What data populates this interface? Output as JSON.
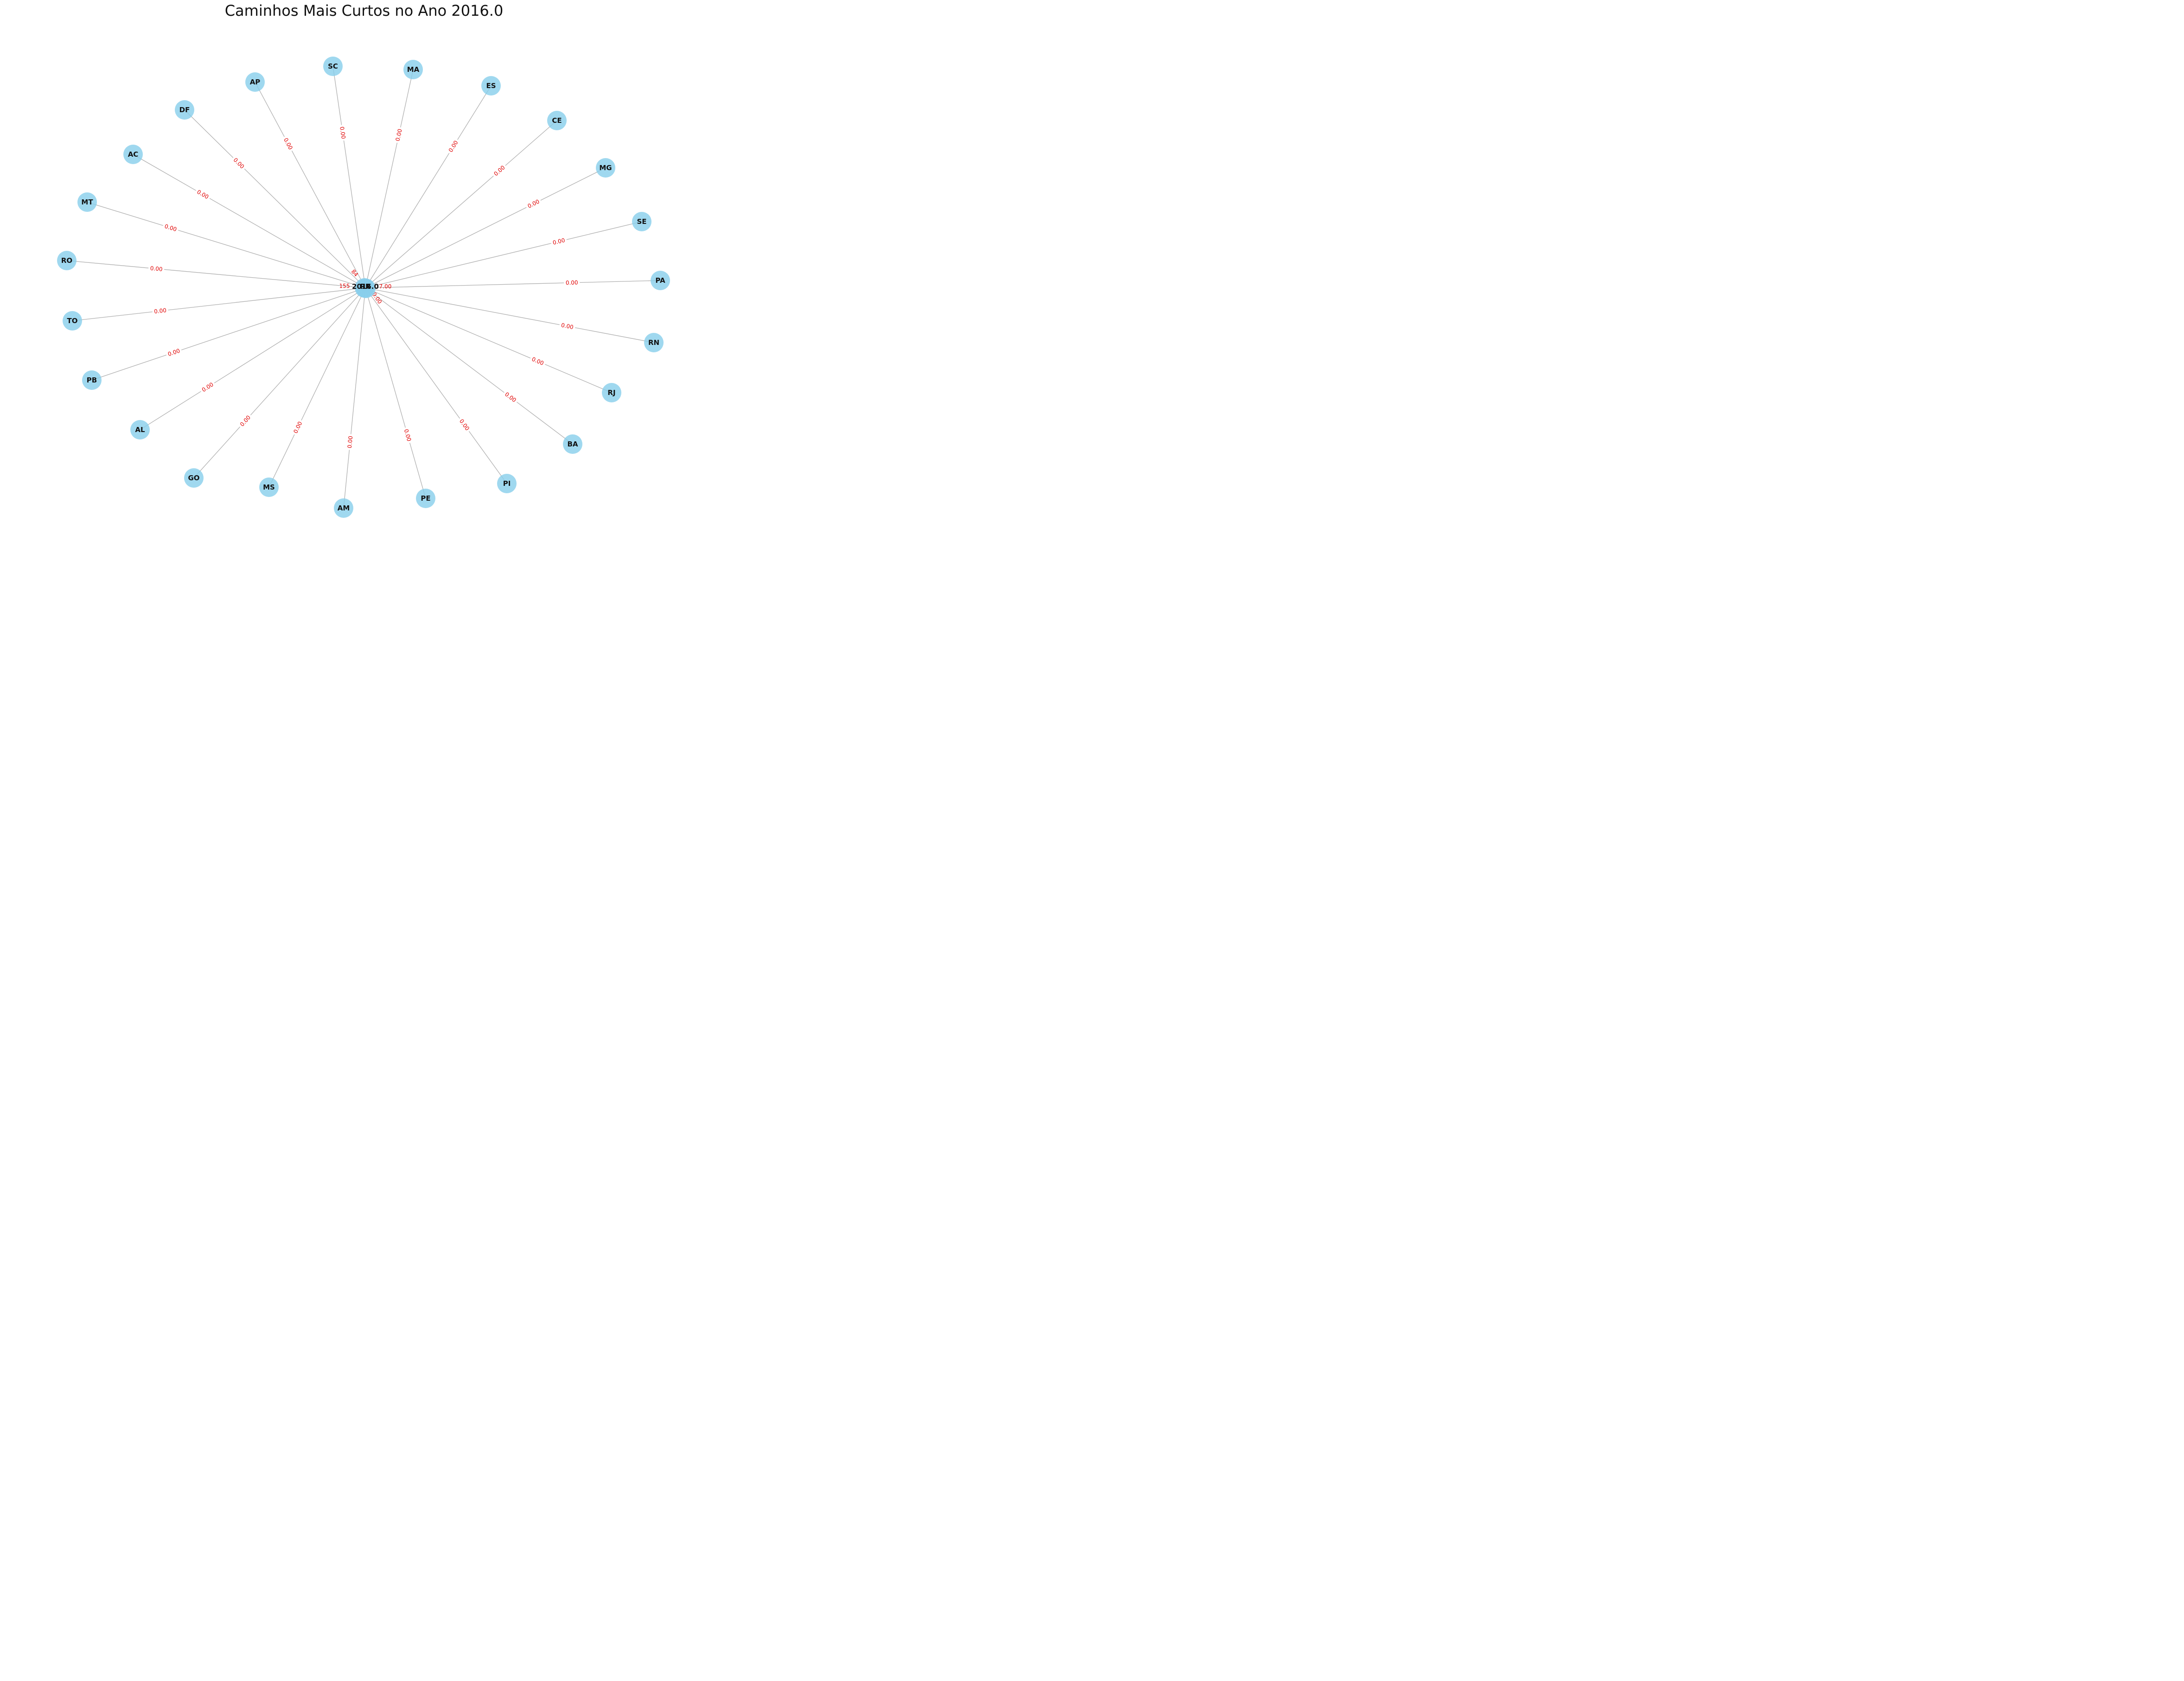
{
  "title": "Caminhos Mais Curtos no Ano 2016.0",
  "center": {
    "id": "RR",
    "overlay_label": "2016.0"
  },
  "colors": {
    "node": "#87CEEB",
    "edge": "#b0b0b0",
    "edge_label": "#e00000",
    "text": "#111111"
  },
  "nodes": [
    {
      "id": "SC"
    },
    {
      "id": "MA"
    },
    {
      "id": "ES"
    },
    {
      "id": "CE"
    },
    {
      "id": "MG"
    },
    {
      "id": "SE"
    },
    {
      "id": "PA"
    },
    {
      "id": "RN"
    },
    {
      "id": "RJ"
    },
    {
      "id": "BA"
    },
    {
      "id": "PI"
    },
    {
      "id": "PE"
    },
    {
      "id": "AM"
    },
    {
      "id": "MS"
    },
    {
      "id": "GO"
    },
    {
      "id": "AL"
    },
    {
      "id": "PB"
    },
    {
      "id": "TO"
    },
    {
      "id": "RO"
    },
    {
      "id": "MT"
    },
    {
      "id": "AC"
    },
    {
      "id": "DF"
    },
    {
      "id": "AP"
    }
  ],
  "edges": [
    {
      "target": "SC",
      "label": "0.00"
    },
    {
      "target": "MA",
      "label": "0.00"
    },
    {
      "target": "ES",
      "label": "0.00"
    },
    {
      "target": "CE",
      "label": "0.00"
    },
    {
      "target": "MG",
      "label": "0.00"
    },
    {
      "target": "SE",
      "label": "0.00"
    },
    {
      "target": "PA",
      "label": "0.00"
    },
    {
      "target": "RN",
      "label": "0.00"
    },
    {
      "target": "RJ",
      "label": "0.00"
    },
    {
      "target": "BA",
      "label": "0.00"
    },
    {
      "target": "PI",
      "label": "0.00"
    },
    {
      "target": "PE",
      "label": "0.00"
    },
    {
      "target": "AM",
      "label": "0.00"
    },
    {
      "target": "MS",
      "label": "0.00"
    },
    {
      "target": "GO",
      "label": "0.00"
    },
    {
      "target": "AL",
      "label": "0.00"
    },
    {
      "target": "PB",
      "label": "0.00"
    },
    {
      "target": "TO",
      "label": "0.00"
    },
    {
      "target": "RO",
      "label": "0.00"
    },
    {
      "target": "MT",
      "label": "0.00"
    },
    {
      "target": "AC",
      "label": "0.00"
    },
    {
      "target": "DF",
      "label": "0.00"
    },
    {
      "target": "AP",
      "label": "0.00"
    }
  ],
  "overlap_labels": [
    "155",
    "84",
    "7.00",
    "0.00"
  ]
}
